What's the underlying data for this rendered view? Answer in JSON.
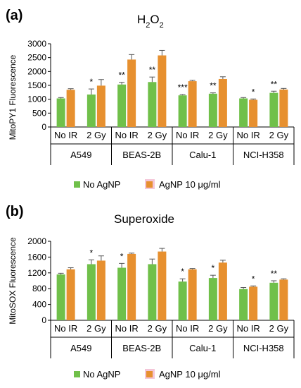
{
  "colors": {
    "no_agnp": "#70c04a",
    "agnp": "#e7902f",
    "highlight": "#f4c6d8",
    "axis": "#000000"
  },
  "legend": {
    "series": [
      "No AgNP",
      "AgNP 10 μg/ml"
    ]
  },
  "chart_data": [
    {
      "type": "bar",
      "panel_letter": "(a)",
      "title": "H",
      "title_sub": "2",
      "title_mid": "O",
      "title_sub2": "2",
      "ylabel": "MitoPY1 Fluorescence",
      "ylim": [
        0,
        3000
      ],
      "yticks": [
        0,
        500,
        1000,
        1500,
        2000,
        2500,
        3000
      ],
      "yticklabels": [
        "0",
        "500",
        "1000",
        "1500",
        "2000",
        "2500",
        "3000"
      ],
      "groups": [
        "A549",
        "BEAS-2B",
        "Calu-1",
        "NCI-H358"
      ],
      "categories": [
        "No IR",
        "2 Gy",
        "No IR",
        "2 Gy",
        "No IR",
        "2 Gy",
        "No IR",
        "2 Gy"
      ],
      "series": [
        {
          "name": "No AgNP",
          "values": [
            1030,
            1170,
            1530,
            1620,
            1140,
            1200,
            1030,
            1230
          ],
          "errors": [
            30,
            200,
            80,
            180,
            30,
            30,
            30,
            60
          ]
        },
        {
          "name": "AgNP 10 μg/ml",
          "values": [
            1340,
            1490,
            2430,
            2580,
            1650,
            1730,
            980,
            1350
          ],
          "errors": [
            40,
            220,
            180,
            180,
            30,
            80,
            30,
            40
          ]
        }
      ],
      "significance": [
        "",
        "",
        "",
        "",
        "",
        "",
        "*",
        "",
        "",
        "",
        "**",
        "",
        "",
        "",
        "**",
        "",
        "",
        "",
        "***",
        "",
        "",
        "",
        "**",
        "",
        "",
        "",
        "",
        "",
        "*",
        "",
        "**",
        ""
      ]
    },
    {
      "type": "bar",
      "panel_letter": "(b)",
      "title": "Superoxide",
      "ylabel": "MitoSOX Fluorescence",
      "ylim": [
        0,
        2000
      ],
      "yticks": [
        0,
        400,
        800,
        1200,
        1600,
        2000
      ],
      "yticklabels": [
        "0",
        "400",
        "800",
        "1200",
        "1600",
        "2000"
      ],
      "groups": [
        "A549",
        "BEAS-2B",
        "Calu-1",
        "NCI-H358"
      ],
      "categories": [
        "No IR",
        "2 Gy",
        "No IR",
        "2 Gy",
        "No IR",
        "2 Gy",
        "No IR",
        "2 Gy"
      ],
      "series": [
        {
          "name": "No AgNP",
          "values": [
            1160,
            1420,
            1330,
            1420,
            980,
            1070,
            790,
            950
          ],
          "errors": [
            30,
            110,
            110,
            130,
            70,
            70,
            40,
            50
          ]
        },
        {
          "name": "AgNP 10 μg/ml",
          "values": [
            1290,
            1510,
            1680,
            1740,
            1290,
            1460,
            850,
            1030
          ],
          "errors": [
            40,
            120,
            20,
            80,
            20,
            60,
            20,
            20
          ]
        }
      ],
      "significance": [
        "",
        "",
        "",
        "",
        "",
        "",
        "*",
        "",
        "",
        "",
        "*",
        "",
        "",
        "",
        "",
        "",
        "",
        "",
        "*",
        "",
        "",
        "",
        "*",
        "",
        "",
        "",
        "",
        "",
        "*",
        "",
        "**",
        ""
      ]
    }
  ]
}
